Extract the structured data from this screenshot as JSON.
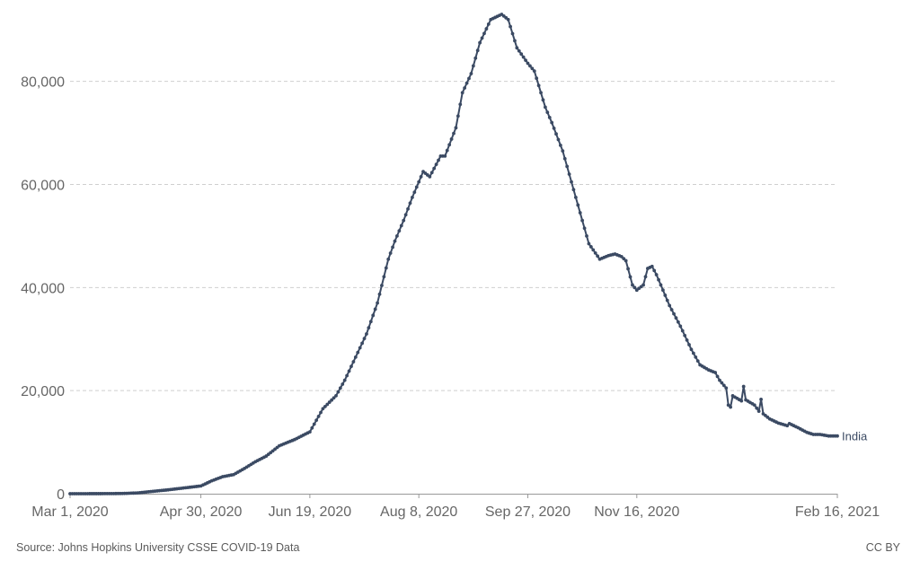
{
  "chart_data": {
    "type": "line",
    "x_axis": {
      "ticks": [
        "Mar 1, 2020",
        "Apr 30, 2020",
        "Jun 19, 2020",
        "Aug 8, 2020",
        "Sep 27, 2020",
        "Nov 16, 2020",
        "Feb 16, 2021"
      ],
      "range": [
        "2020-03-01",
        "2021-02-16"
      ]
    },
    "y_axis": {
      "ticks": [
        "0",
        "20,000",
        "40,000",
        "60,000",
        "80,000"
      ],
      "ylim": [
        0,
        93000
      ]
    },
    "grid": true,
    "series": [
      {
        "name": "India",
        "color": "#3b4a63",
        "points": [
          [
            "2020-03-01",
            0
          ],
          [
            "2020-03-15",
            10
          ],
          [
            "2020-03-25",
            40
          ],
          [
            "2020-04-01",
            150
          ],
          [
            "2020-04-08",
            450
          ],
          [
            "2020-04-15",
            750
          ],
          [
            "2020-04-22",
            1100
          ],
          [
            "2020-04-30",
            1500
          ],
          [
            "2020-05-05",
            2500
          ],
          [
            "2020-05-10",
            3300
          ],
          [
            "2020-05-15",
            3700
          ],
          [
            "2020-05-20",
            4900
          ],
          [
            "2020-05-25",
            6200
          ],
          [
            "2020-05-30",
            7300
          ],
          [
            "2020-06-05",
            9300
          ],
          [
            "2020-06-12",
            10500
          ],
          [
            "2020-06-19",
            12000
          ],
          [
            "2020-06-25",
            16500
          ],
          [
            "2020-07-01",
            19000
          ],
          [
            "2020-07-05",
            22000
          ],
          [
            "2020-07-10",
            26500
          ],
          [
            "2020-07-15",
            31000
          ],
          [
            "2020-07-20",
            37000
          ],
          [
            "2020-07-25",
            45500
          ],
          [
            "2020-07-28",
            49000
          ],
          [
            "2020-08-01",
            53000
          ],
          [
            "2020-08-05",
            57500
          ],
          [
            "2020-08-08",
            60500
          ],
          [
            "2020-08-10",
            62500
          ],
          [
            "2020-08-13",
            61500
          ],
          [
            "2020-08-18",
            65500
          ],
          [
            "2020-08-20",
            65500
          ],
          [
            "2020-08-25",
            71000
          ],
          [
            "2020-08-28",
            77800
          ],
          [
            "2020-09-01",
            81500
          ],
          [
            "2020-09-05",
            87500
          ],
          [
            "2020-09-10",
            92000
          ],
          [
            "2020-09-15",
            93000
          ],
          [
            "2020-09-18",
            92000
          ],
          [
            "2020-09-22",
            86500
          ],
          [
            "2020-09-27",
            83500
          ],
          [
            "2020-09-30",
            82000
          ],
          [
            "2020-10-05",
            75000
          ],
          [
            "2020-10-08",
            72000
          ],
          [
            "2020-10-13",
            66500
          ],
          [
            "2020-10-18",
            59000
          ],
          [
            "2020-10-25",
            48500
          ],
          [
            "2020-10-30",
            45500
          ],
          [
            "2020-11-03",
            46200
          ],
          [
            "2020-11-06",
            46500
          ],
          [
            "2020-11-09",
            46000
          ],
          [
            "2020-11-11",
            45200
          ],
          [
            "2020-11-14",
            40500
          ],
          [
            "2020-11-16",
            39500
          ],
          [
            "2020-11-19",
            40500
          ],
          [
            "2020-11-21",
            43700
          ],
          [
            "2020-11-23",
            44100
          ],
          [
            "2020-11-25",
            42500
          ],
          [
            "2020-12-01",
            36500
          ],
          [
            "2020-12-06",
            32500
          ],
          [
            "2020-12-11",
            28000
          ],
          [
            "2020-12-15",
            25000
          ],
          [
            "2020-12-19",
            24000
          ],
          [
            "2020-12-22",
            23500
          ],
          [
            "2020-12-24",
            22000
          ],
          [
            "2020-12-27",
            20500
          ],
          [
            "2020-12-28",
            17200
          ],
          [
            "2020-12-29",
            16800
          ],
          [
            "2020-12-30",
            19000
          ],
          [
            "2021-01-01",
            18500
          ],
          [
            "2021-01-03",
            18000
          ],
          [
            "2021-01-04",
            20800
          ],
          [
            "2021-01-05",
            18200
          ],
          [
            "2021-01-09",
            17200
          ],
          [
            "2021-01-11",
            16000
          ],
          [
            "2021-01-12",
            18300
          ],
          [
            "2021-01-13",
            15500
          ],
          [
            "2021-01-16",
            14500
          ],
          [
            "2021-01-20",
            13700
          ],
          [
            "2021-01-24",
            13200
          ],
          [
            "2021-01-25",
            13600
          ],
          [
            "2021-01-29",
            12800
          ],
          [
            "2021-02-02",
            11900
          ],
          [
            "2021-02-05",
            11500
          ],
          [
            "2021-02-08",
            11500
          ],
          [
            "2021-02-12",
            11200
          ],
          [
            "2021-02-16",
            11200
          ]
        ]
      }
    ]
  },
  "footer": {
    "source": "Source: Johns Hopkins University CSSE COVID-19 Data",
    "license": "CC BY"
  }
}
